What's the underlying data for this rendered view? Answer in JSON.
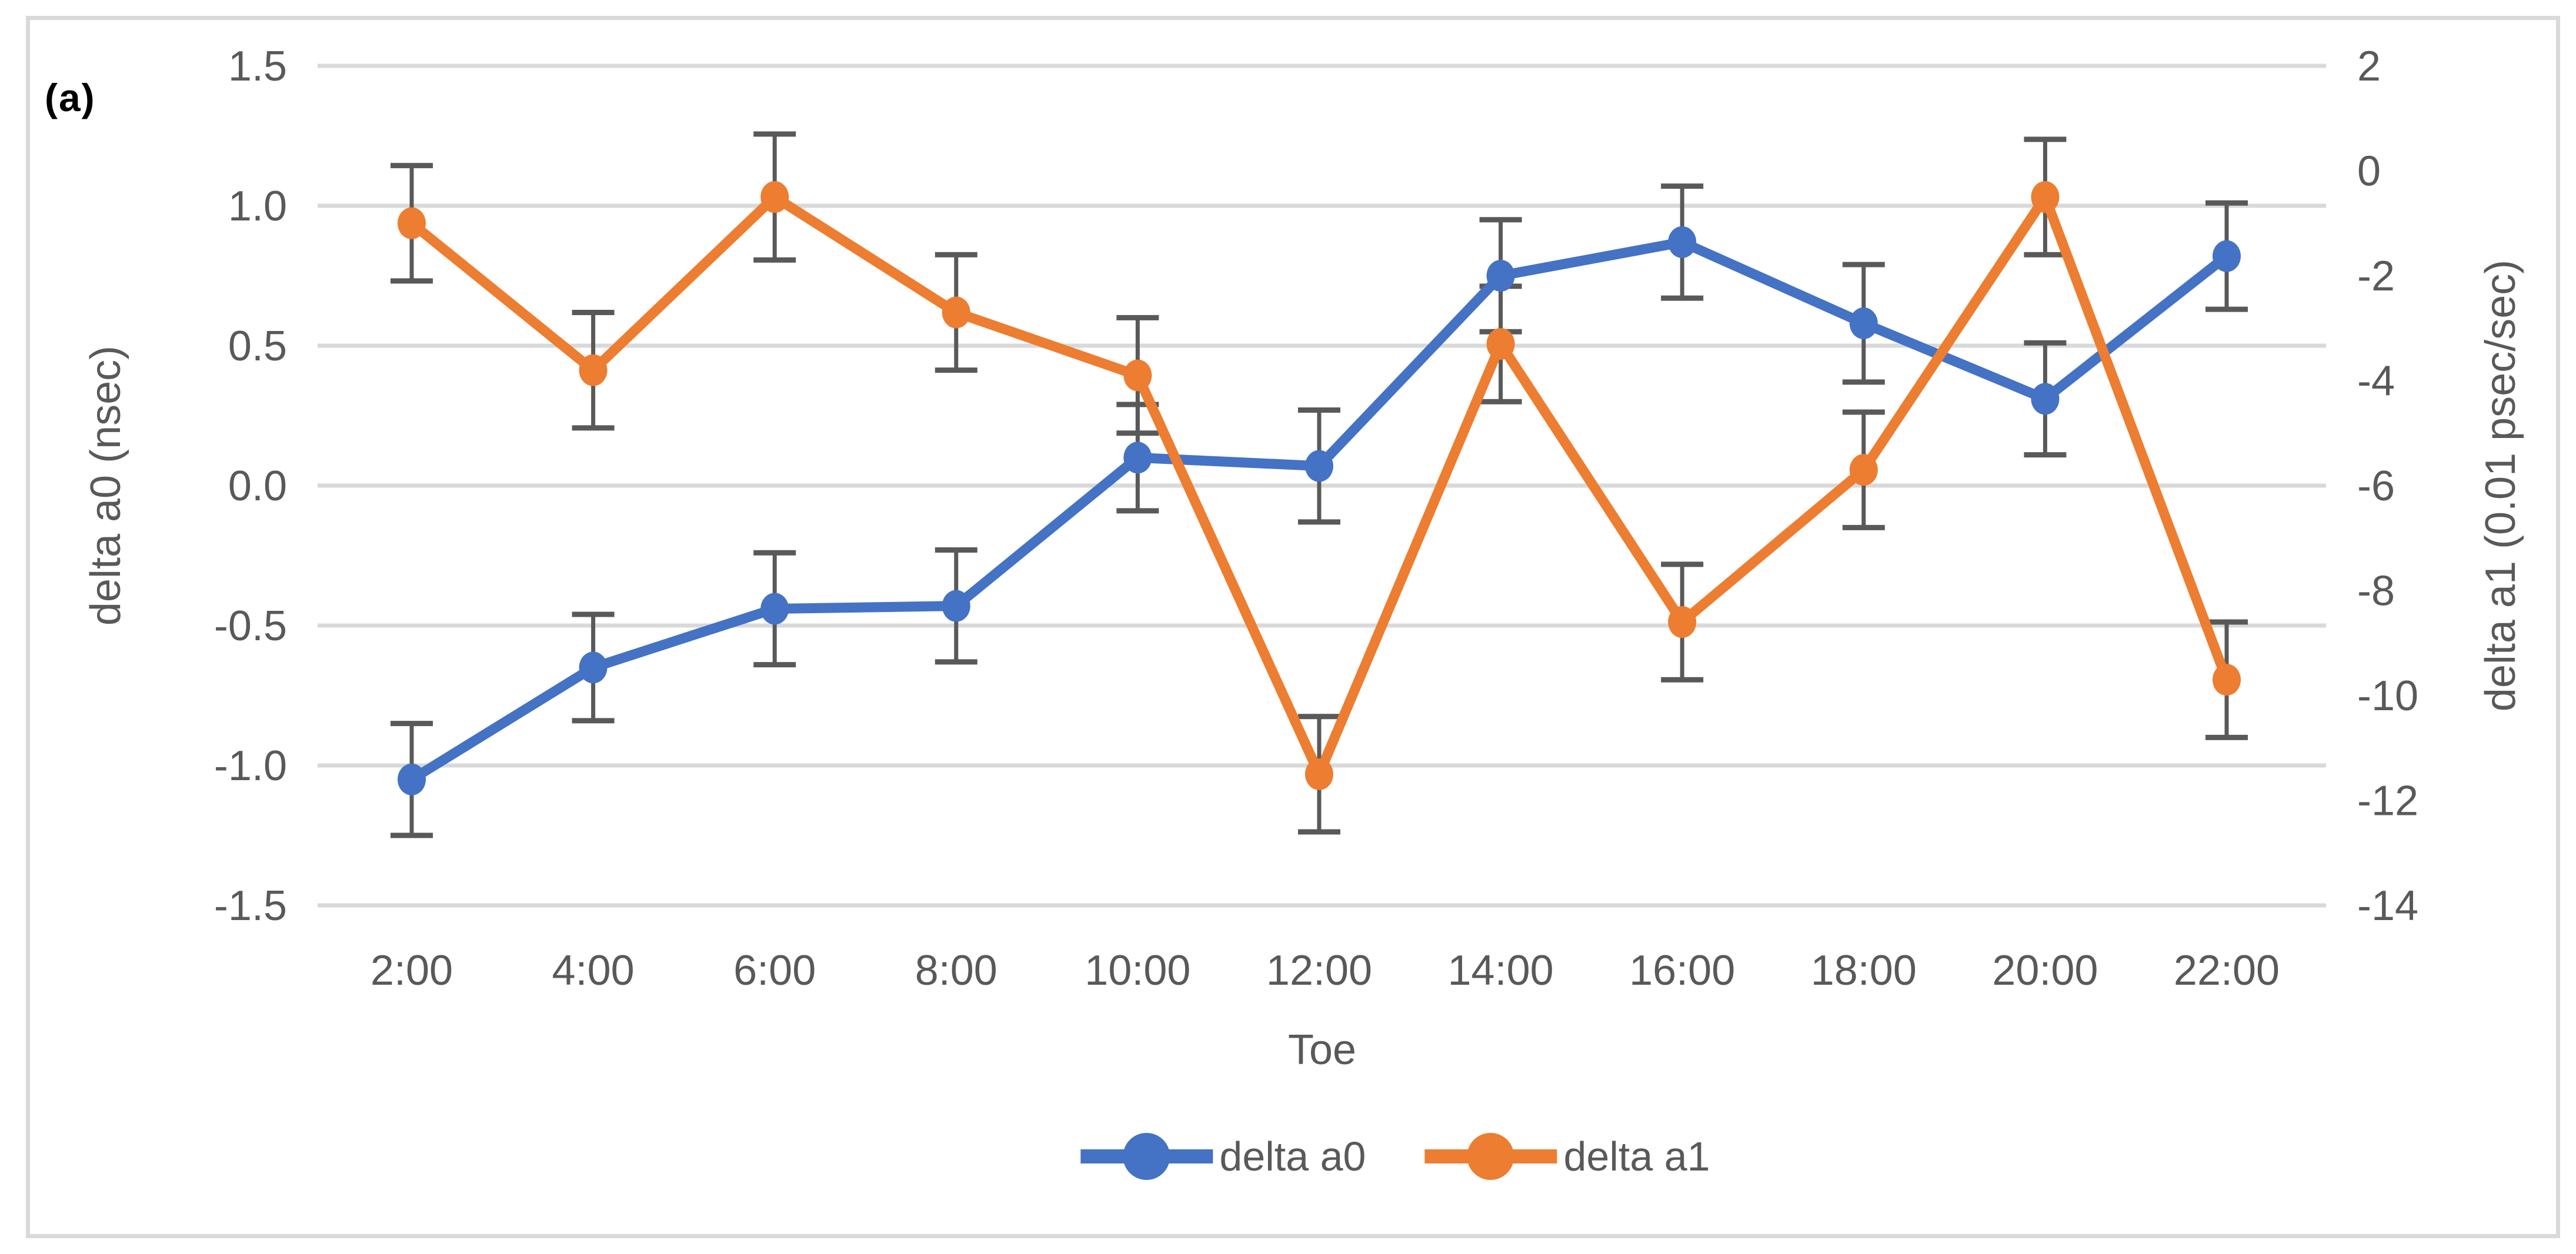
{
  "panel_label": "(a)",
  "colors": {
    "series_blue": "#4472C4",
    "series_orange": "#ED7D31",
    "gridline": "#D9D9D9",
    "error_bar": "#595959",
    "tick_text": "#595959",
    "axis_text": "#595959",
    "frame_border": "#D9D9D9",
    "background": "#FFFFFF"
  },
  "chart_data": {
    "type": "line",
    "title": "",
    "xlabel": "Toe",
    "ylabel_left": "delta a0 (nsec)",
    "ylabel_right": "delta a1 (0.01 psec/sec)",
    "grid": true,
    "legend_position": "bottom",
    "categories": [
      "2:00",
      "4:00",
      "6:00",
      "8:00",
      "10:00",
      "12:00",
      "14:00",
      "16:00",
      "18:00",
      "20:00",
      "22:00"
    ],
    "left_axis": {
      "min": -1.5,
      "max": 1.5,
      "tick_labels": [
        "1.5",
        "1.0",
        "0.5",
        "0.0",
        "-0.5",
        "-1.0",
        "-1.5"
      ],
      "tick_values": [
        1.5,
        1.0,
        0.5,
        0.0,
        -0.5,
        -1.0,
        -1.5
      ]
    },
    "right_axis": {
      "min": -14,
      "max": 2,
      "tick_labels": [
        "2",
        "0",
        "-2",
        "-4",
        "-6",
        "-8",
        "-10",
        "-12",
        "-14"
      ],
      "tick_values": [
        2,
        0,
        -2,
        -4,
        -6,
        -8,
        -10,
        -12,
        -14
      ]
    },
    "series": [
      {
        "name": "delta a0",
        "axis": "left",
        "color": "#4472C4",
        "values": [
          -1.05,
          -0.65,
          -0.44,
          -0.43,
          0.1,
          0.07,
          0.75,
          0.87,
          0.58,
          0.31,
          0.82
        ],
        "errors": [
          0.2,
          0.19,
          0.2,
          0.2,
          0.19,
          0.2,
          0.2,
          0.2,
          0.21,
          0.2,
          0.19
        ]
      },
      {
        "name": "delta a1",
        "axis": "right",
        "color": "#ED7D31",
        "values": [
          -1.0,
          -3.8,
          -0.5,
          -2.7,
          -3.9,
          -11.5,
          -3.3,
          -8.6,
          -5.7,
          -0.5,
          -9.7
        ],
        "errors": [
          1.1,
          1.1,
          1.2,
          1.1,
          1.1,
          1.1,
          1.1,
          1.1,
          1.1,
          1.1,
          1.1
        ]
      }
    ]
  }
}
